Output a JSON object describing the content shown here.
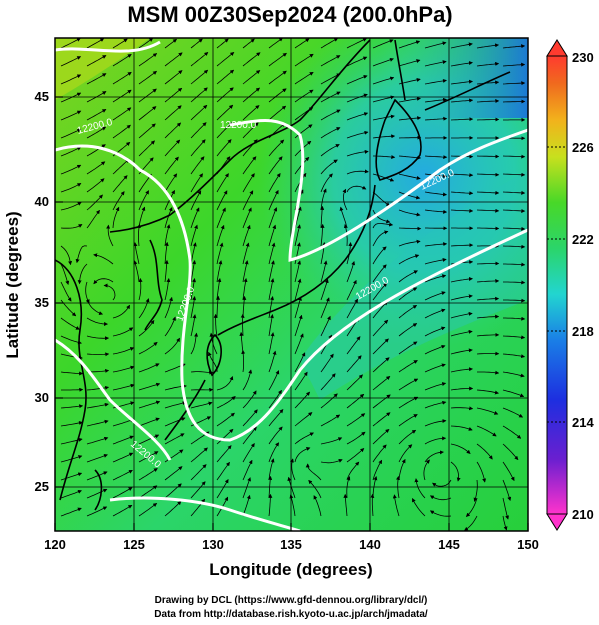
{
  "title": "MSM 00Z30Sep2024 (200.0hPa)",
  "x_axis": {
    "label": "Longitude (degrees)",
    "ticks": [
      "120",
      "125",
      "130",
      "135",
      "140",
      "145",
      "150"
    ]
  },
  "y_axis": {
    "label": "Latitude  (degrees)",
    "ticks": [
      "25",
      "30",
      "35",
      "40",
      "45"
    ]
  },
  "colorbar": {
    "ticks": [
      "210",
      "214",
      "218",
      "222",
      "226",
      "230"
    ],
    "min": 210,
    "max": 230
  },
  "contour_labels": [
    "12200.0",
    "12200.0",
    "12200.0",
    "12200.0",
    "12200.0",
    "12200.0"
  ],
  "credits": {
    "line1": "Drawing by DCL (https://www.gfd-dennou.org/library/dcl/)",
    "line2": "Data from http://database.rish.kyoto-u.ac.jp/arch/jmadata/"
  },
  "colors": {
    "background_field": "#2fd52f",
    "low_end": "#ff33cc",
    "high_end": "#ff3b2f",
    "contour": "#ffffff",
    "streamline": "#000000"
  }
}
